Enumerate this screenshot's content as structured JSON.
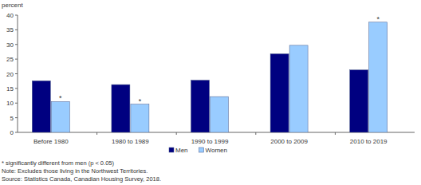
{
  "chart_data": {
    "type": "bar",
    "y_label": "percent",
    "categories": [
      "Before 1980",
      "1980 to 1989",
      "1990 to 1999",
      "2000 to 2009",
      "2010 to 2019"
    ],
    "series": [
      {
        "name": "Men",
        "color": "#000080",
        "values": [
          17.6,
          16.3,
          17.8,
          26.8,
          21.3
        ]
      },
      {
        "name": "Women",
        "color": "#99ccff",
        "values": [
          10.5,
          9.6,
          12.2,
          29.7,
          37.6
        ]
      }
    ],
    "annotations": [
      {
        "text": "*",
        "category": "Before 1980",
        "series": "Women"
      },
      {
        "text": "*",
        "category": "1980 to 1989",
        "series": "Women"
      },
      {
        "text": "*",
        "category": "2010 to 2019",
        "series": "Women"
      }
    ],
    "notes": [
      "* significantly different from men (p < 0.05)",
      "Note: Excludes those living in the Northwest Territories.",
      "Source: Statistics Canada, Canadian Housing Survey, 2018."
    ],
    "ylim": [
      0,
      40
    ],
    "yticks": [
      0,
      5,
      10,
      15,
      20,
      25,
      30,
      35,
      40
    ],
    "grid": false,
    "legend": "bottom"
  }
}
